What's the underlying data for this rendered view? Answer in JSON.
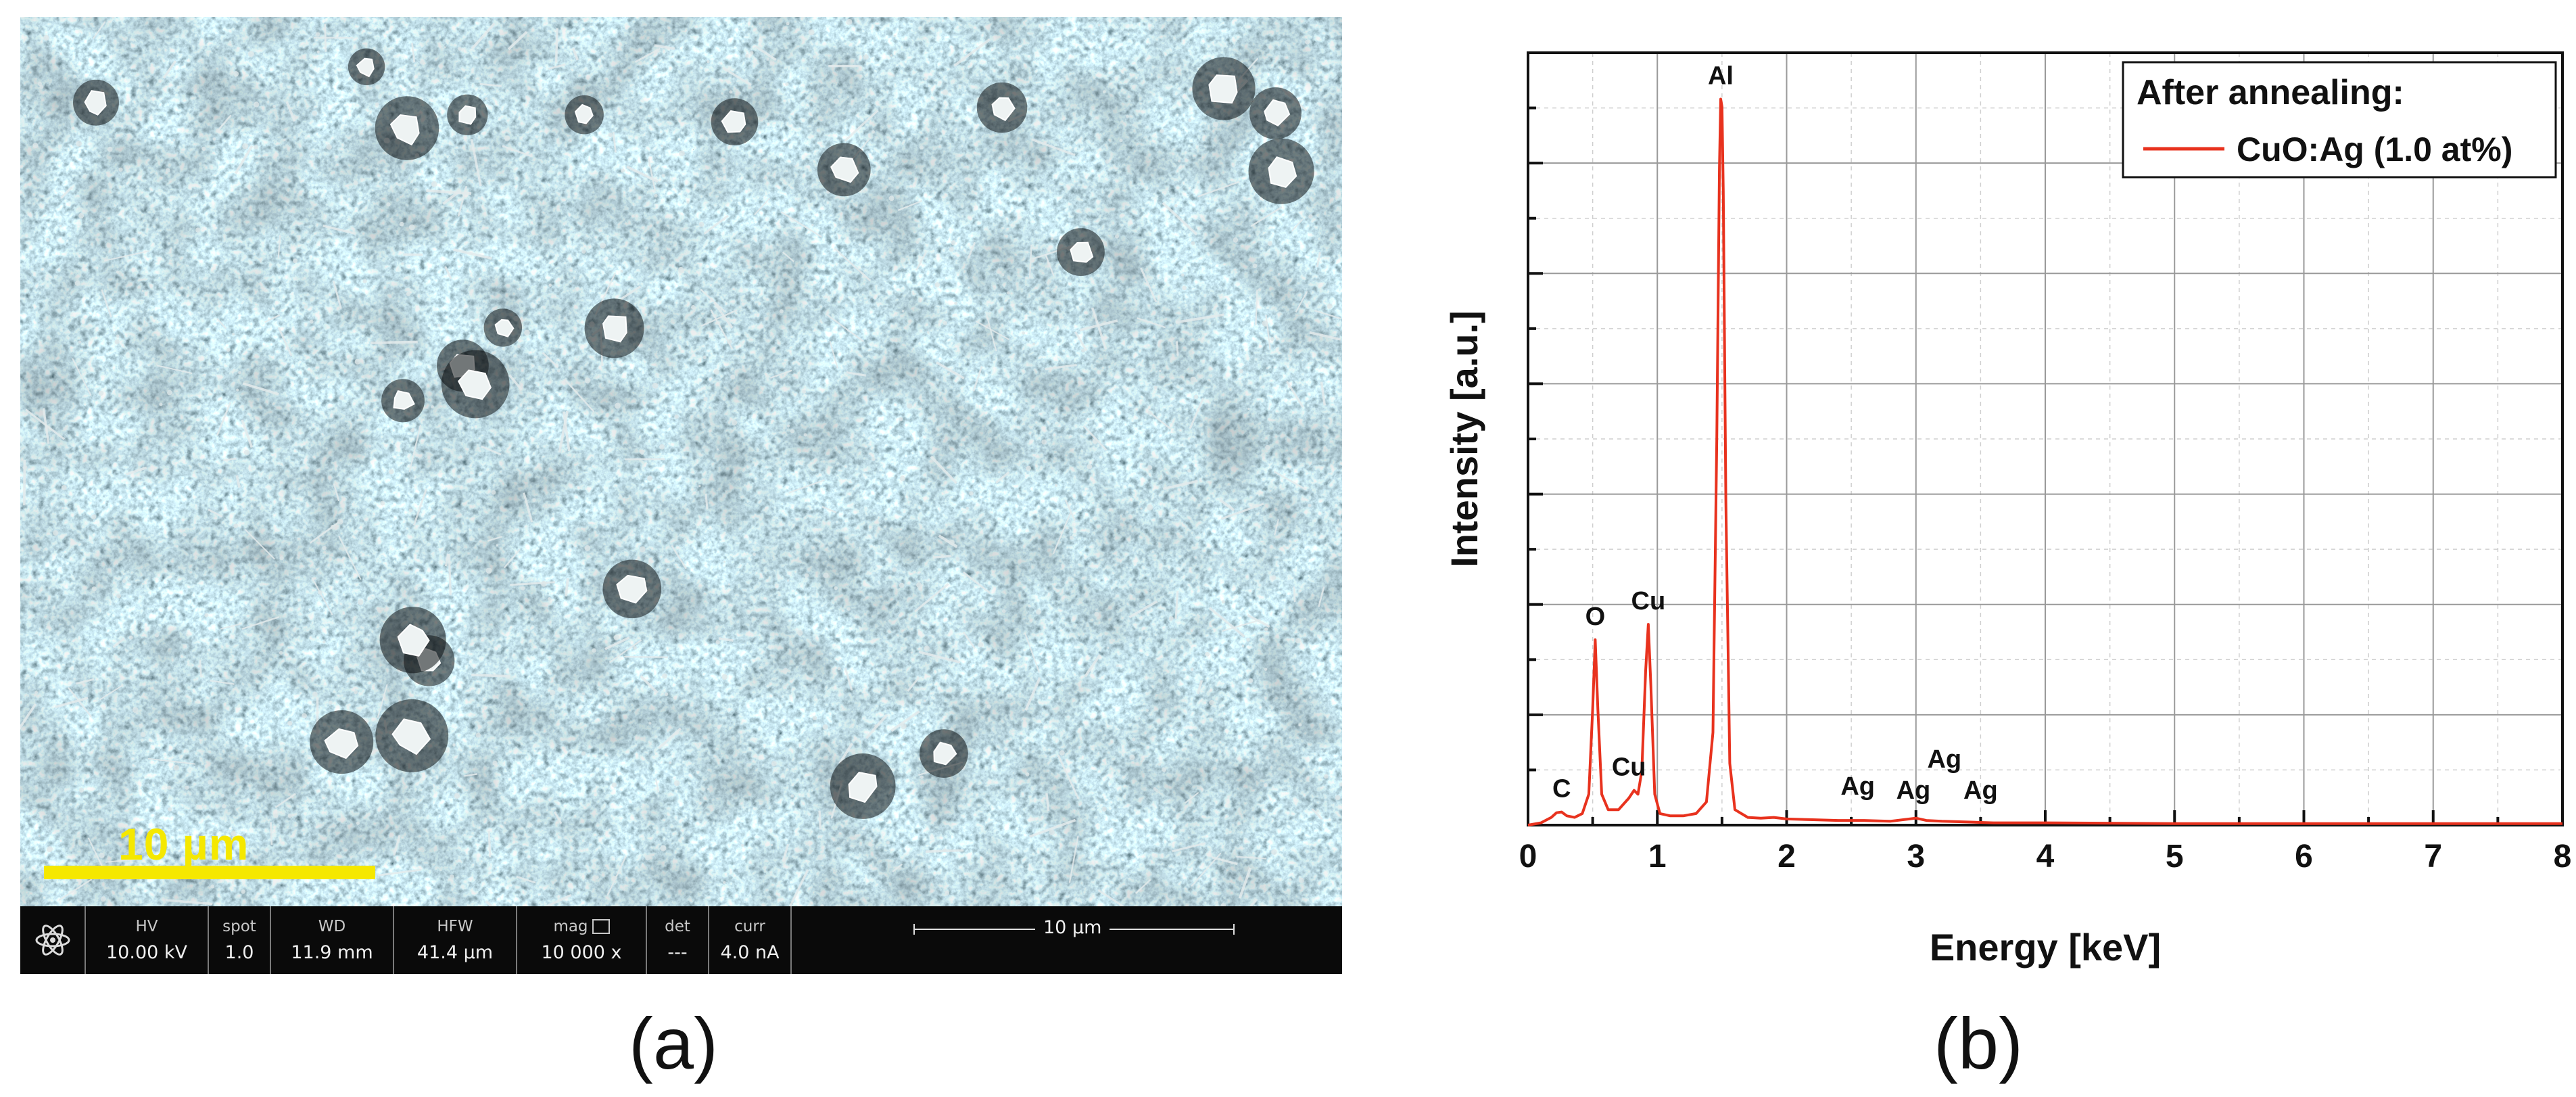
{
  "panels": {
    "a_label": "(a)",
    "b_label": "(b)"
  },
  "sem": {
    "scale_bar_text": "10 µm",
    "info_bar": {
      "cells": [
        {
          "head": "HV",
          "value": "10.00 kV"
        },
        {
          "head": "spot",
          "value": "1.0"
        },
        {
          "head": "WD",
          "value": "11.9 mm"
        },
        {
          "head": "HFW",
          "value": "41.4 µm"
        },
        {
          "head": "mag",
          "value": "10 000 x"
        },
        {
          "head": "det",
          "value": "---"
        },
        {
          "head": "curr",
          "value": "4.0 nA"
        }
      ],
      "scale_text": "10 µm"
    }
  },
  "chart_data": {
    "type": "line",
    "title": "",
    "xlabel": "Energy [keV]",
    "ylabel": "Intensity [a.u.]",
    "xlim": [
      0,
      8
    ],
    "ylim": [
      0,
      1
    ],
    "x_ticks": [
      0,
      1,
      2,
      3,
      4,
      5,
      6,
      7,
      8
    ],
    "y_ticklabels_shown": false,
    "grid": true,
    "legend": {
      "title": "After annealing:",
      "placement": "top-right"
    },
    "series": [
      {
        "name": "CuO:Ag (1.0 at%)",
        "color": "#e8321e",
        "x": [
          0.0,
          0.1,
          0.18,
          0.22,
          0.26,
          0.3,
          0.36,
          0.42,
          0.47,
          0.5,
          0.52,
          0.54,
          0.57,
          0.62,
          0.7,
          0.78,
          0.82,
          0.85,
          0.88,
          0.91,
          0.93,
          0.95,
          0.98,
          1.02,
          1.1,
          1.2,
          1.3,
          1.38,
          1.43,
          1.46,
          1.48,
          1.49,
          1.5,
          1.51,
          1.53,
          1.56,
          1.6,
          1.7,
          1.8,
          1.9,
          2.0,
          2.2,
          2.4,
          2.6,
          2.8,
          2.95,
          3.0,
          3.08,
          3.2,
          3.4,
          3.6,
          4.0,
          5.0,
          6.0,
          7.0,
          8.0
        ],
        "y": [
          0.0,
          0.003,
          0.01,
          0.016,
          0.017,
          0.012,
          0.01,
          0.015,
          0.04,
          0.15,
          0.24,
          0.15,
          0.04,
          0.02,
          0.02,
          0.035,
          0.045,
          0.04,
          0.07,
          0.2,
          0.26,
          0.18,
          0.04,
          0.015,
          0.012,
          0.012,
          0.015,
          0.03,
          0.12,
          0.5,
          0.85,
          0.94,
          0.93,
          0.82,
          0.42,
          0.08,
          0.02,
          0.01,
          0.009,
          0.01,
          0.008,
          0.007,
          0.006,
          0.006,
          0.005,
          0.008,
          0.009,
          0.006,
          0.005,
          0.004,
          0.003,
          0.003,
          0.002,
          0.002,
          0.002,
          0.002
        ]
      }
    ],
    "annotations": [
      {
        "text": "C",
        "x": 0.26,
        "y": 0.017
      },
      {
        "text": "O",
        "x": 0.52,
        "y": 0.24
      },
      {
        "text": "Cu",
        "x": 0.78,
        "y": 0.045
      },
      {
        "text": "Cu",
        "x": 0.93,
        "y": 0.26
      },
      {
        "text": "Al",
        "x": 1.49,
        "y": 0.94
      },
      {
        "text": "Ag",
        "x": 2.55,
        "y": 0.02
      },
      {
        "text": "Ag",
        "x": 2.98,
        "y": 0.015
      },
      {
        "text": "Ag",
        "x": 3.22,
        "y": 0.055
      },
      {
        "text": "Ag",
        "x": 3.5,
        "y": 0.015
      }
    ]
  }
}
